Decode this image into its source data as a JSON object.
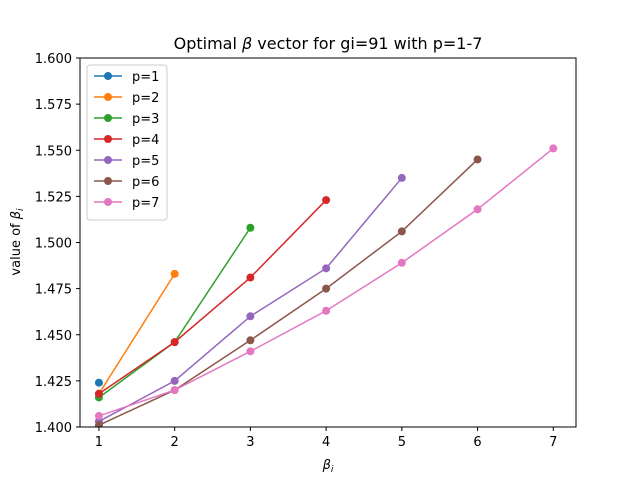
{
  "chart_data": {
    "type": "line",
    "title_prefix": "Optimal ",
    "title_symbol": "β",
    "title_suffix": " vector for gi=91 with p=1-7",
    "xlabel_symbol": "β",
    "xlabel_subscript": "i",
    "ylabel_text": "value of ",
    "ylabel_symbol": "β",
    "ylabel_subscript": "i",
    "xlim": [
      0.75,
      7.3
    ],
    "ylim": [
      1.4,
      1.6
    ],
    "xticks": [
      1,
      2,
      3,
      4,
      5,
      6,
      7
    ],
    "yticks": [
      1.4,
      1.425,
      1.45,
      1.475,
      1.5,
      1.525,
      1.55,
      1.575,
      1.6
    ],
    "ytick_labels": [
      "1.400",
      "1.425",
      "1.450",
      "1.475",
      "1.500",
      "1.525",
      "1.550",
      "1.575",
      "1.600"
    ],
    "grid": false,
    "legend_position": "top-left",
    "series": [
      {
        "name": "p=1",
        "color": "#1f77b4",
        "x": [
          1
        ],
        "y": [
          1.424
        ]
      },
      {
        "name": "p=2",
        "color": "#ff7f0e",
        "x": [
          1,
          2
        ],
        "y": [
          1.418,
          1.483
        ]
      },
      {
        "name": "p=3",
        "color": "#2ca02c",
        "x": [
          1,
          2,
          3
        ],
        "y": [
          1.416,
          1.446,
          1.508
        ]
      },
      {
        "name": "p=4",
        "color": "#d62728",
        "x": [
          1,
          2,
          3,
          4
        ],
        "y": [
          1.418,
          1.446,
          1.481,
          1.523
        ]
      },
      {
        "name": "p=5",
        "color": "#9467bd",
        "x": [
          1,
          2,
          3,
          4,
          5
        ],
        "y": [
          1.403,
          1.425,
          1.46,
          1.486,
          1.535
        ]
      },
      {
        "name": "p=6",
        "color": "#8c564b",
        "x": [
          1,
          2,
          3,
          4,
          5,
          6
        ],
        "y": [
          1.401,
          1.42,
          1.447,
          1.475,
          1.506,
          1.545
        ]
      },
      {
        "name": "p=7",
        "color": "#e377c2",
        "x": [
          1,
          2,
          3,
          4,
          5,
          6,
          7
        ],
        "y": [
          1.406,
          1.42,
          1.441,
          1.463,
          1.489,
          1.518,
          1.551
        ]
      }
    ]
  }
}
